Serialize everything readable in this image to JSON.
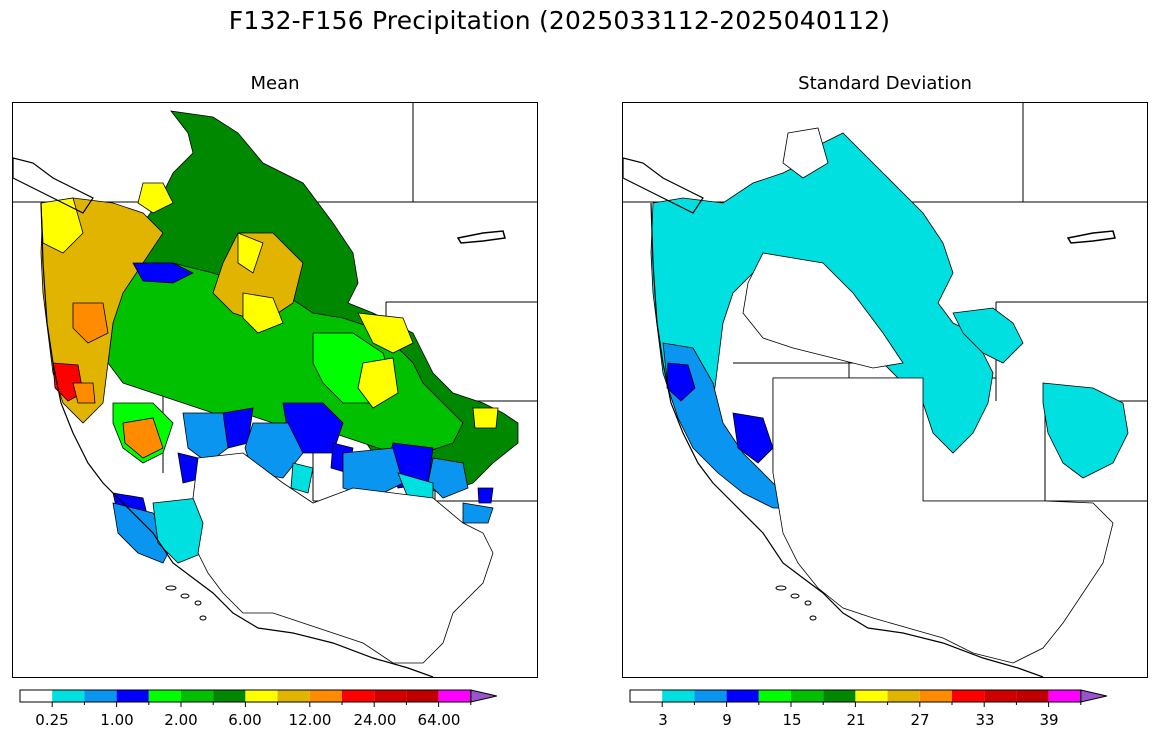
{
  "suptitle": "F132-F156 Precipitation (2025033112-2025040112)",
  "panels": [
    {
      "title": "Mean"
    },
    {
      "title": "Standard Deviation"
    }
  ],
  "colors": {
    "white": "#ffffff",
    "cyan": "#00e0e0",
    "lightblue": "#0a96f0",
    "blue": "#0000ff",
    "lime": "#00ff00",
    "green": "#00c000",
    "darkgreen": "#008800",
    "yellow": "#ffff00",
    "gold": "#e0b400",
    "orange": "#ff8c00",
    "red": "#ff0000",
    "darkred": "#d00000",
    "maroon": "#c00000",
    "magenta": "#ff00ff",
    "purple": "#9955cc"
  },
  "colorbars": [
    {
      "name": "mean",
      "colors": [
        "#ffffff",
        "#00e0e0",
        "#0a96f0",
        "#0000ff",
        "#00ff00",
        "#00c000",
        "#008800",
        "#ffff00",
        "#e0b400",
        "#ff8c00",
        "#ff0000",
        "#d00000",
        "#c00000",
        "#ff00ff",
        "#9955cc"
      ],
      "labels": [
        "0.25",
        "1.00",
        "2.00",
        "6.00",
        "12.00",
        "24.00",
        "64.00"
      ]
    },
    {
      "name": "stdev",
      "colors": [
        "#ffffff",
        "#00e0e0",
        "#0a96f0",
        "#0000ff",
        "#00ff00",
        "#00c000",
        "#008800",
        "#ffff00",
        "#e0b400",
        "#ff8c00",
        "#ff0000",
        "#d00000",
        "#c00000",
        "#ff00ff",
        "#9955cc"
      ],
      "labels": [
        "3",
        "9",
        "15",
        "21",
        "27",
        "33",
        "39"
      ]
    }
  ]
}
